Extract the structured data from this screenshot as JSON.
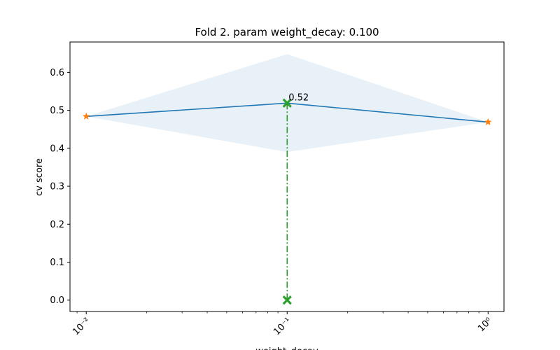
{
  "chart_data": {
    "type": "line",
    "title": "Fold 2. param weight_decay: 0.100",
    "xlabel": "weight_decay",
    "ylabel": "cv score",
    "xscale": "log",
    "xlim": [
      0.0083,
      1.2
    ],
    "ylim": [
      -0.03,
      0.68
    ],
    "grid": false,
    "x": [
      0.01,
      0.1,
      1.0
    ],
    "x_tick_labels": [
      "10⁻²",
      "10⁻¹",
      "10⁰"
    ],
    "y_ticks": [
      0.0,
      0.1,
      0.2,
      0.3,
      0.4,
      0.5,
      0.6
    ],
    "y_tick_labels": [
      "0.0",
      "0.1",
      "0.2",
      "0.3",
      "0.4",
      "0.5",
      "0.6"
    ],
    "series": [
      {
        "values": [
          0.484,
          0.519,
          0.469
        ],
        "color": "#1f77b4",
        "kind": "line"
      }
    ],
    "band": {
      "lower": [
        0.484,
        0.39,
        0.469
      ],
      "upper": [
        0.484,
        0.648,
        0.469
      ],
      "color": "#1f77b4",
      "alpha": 0.1
    },
    "markers": {
      "x": [
        0.01,
        1.0
      ],
      "y": [
        0.484,
        0.469
      ],
      "marker": "star",
      "color": "#ff7f0e"
    },
    "best": {
      "x": 0.1,
      "y": 0.519,
      "label": "0.52",
      "color": "#2ca02c",
      "marker": "X",
      "drop_line": "dash-dot"
    }
  }
}
